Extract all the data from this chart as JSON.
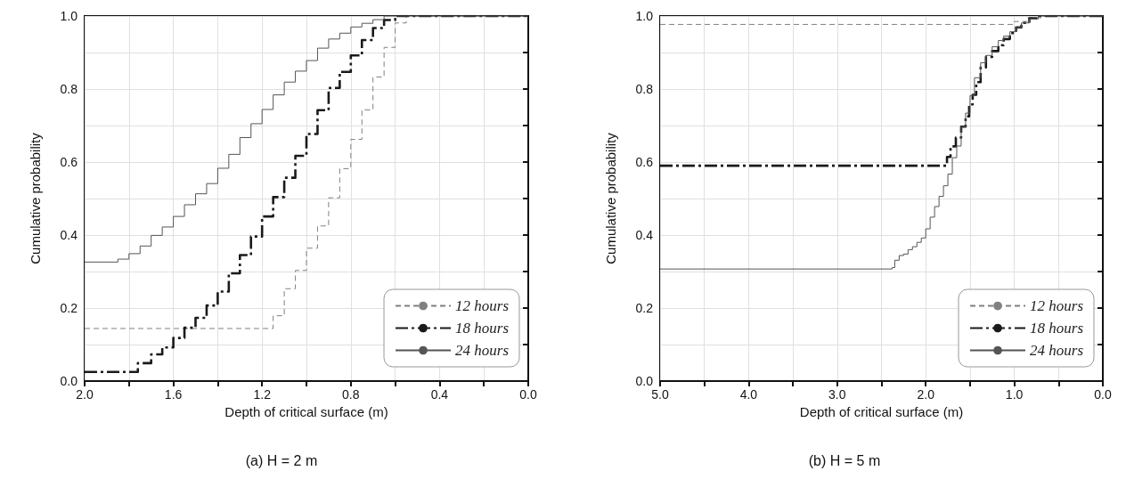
{
  "chart_data": [
    {
      "type": "step",
      "title": "(a) H = 2 m",
      "xlabel": "Depth of critical surface (m)",
      "ylabel": "Cumulative probability",
      "xlim": [
        2.0,
        0.0
      ],
      "xticks": [
        {
          "value": 2.0,
          "label": "2.0"
        },
        {
          "value": 1.8,
          "label": null
        },
        {
          "value": 1.6,
          "label": "1.6"
        },
        {
          "value": 1.4,
          "label": null
        },
        {
          "value": 1.2,
          "label": "1.2"
        },
        {
          "value": 1.0,
          "label": null
        },
        {
          "value": 0.8,
          "label": "0.8"
        },
        {
          "value": 0.6,
          "label": null
        },
        {
          "value": 0.4,
          "label": "0.4"
        },
        {
          "value": 0.2,
          "label": null
        },
        {
          "value": 0.0,
          "label": "0.0"
        }
      ],
      "ylim": [
        0.0,
        1.0
      ],
      "yticks": [
        {
          "value": 0.0,
          "label": "0.0"
        },
        {
          "value": 0.1,
          "label": null
        },
        {
          "value": 0.2,
          "label": "0.2"
        },
        {
          "value": 0.3,
          "label": null
        },
        {
          "value": 0.4,
          "label": "0.4"
        },
        {
          "value": 0.5,
          "label": null
        },
        {
          "value": 0.6,
          "label": "0.6"
        },
        {
          "value": 0.7,
          "label": null
        },
        {
          "value": 0.8,
          "label": "0.8"
        },
        {
          "value": 0.9,
          "label": null
        },
        {
          "value": 1.0,
          "label": "1.0"
        }
      ],
      "grid": true,
      "legend": "bottom right",
      "marker": "none",
      "series": [
        {
          "name": "12 hours",
          "color": "#808080",
          "line_style": "dashed",
          "x": [
            2.0,
            1.15,
            1.1,
            1.05,
            1.0,
            0.95,
            0.9,
            0.85,
            0.8,
            0.75,
            0.7,
            0.65,
            0.6,
            0.55,
            0.0
          ],
          "values": [
            0.144,
            0.179,
            0.253,
            0.303,
            0.364,
            0.425,
            0.502,
            0.582,
            0.662,
            0.743,
            0.833,
            0.914,
            0.981,
            1.0,
            1.0
          ]
        },
        {
          "name": "18 hours",
          "color": "#1a1a1a",
          "line_style": "dashdot",
          "x": [
            2.0,
            1.76,
            1.7,
            1.65,
            1.6,
            1.55,
            1.5,
            1.45,
            1.4,
            1.35,
            1.3,
            1.25,
            1.2,
            1.15,
            1.1,
            1.05,
            1.0,
            0.95,
            0.9,
            0.85,
            0.8,
            0.75,
            0.7,
            0.65,
            0.6,
            0.0
          ],
          "values": [
            0.025,
            0.049,
            0.073,
            0.092,
            0.118,
            0.146,
            0.173,
            0.207,
            0.245,
            0.295,
            0.345,
            0.396,
            0.451,
            0.504,
            0.557,
            0.617,
            0.677,
            0.742,
            0.803,
            0.847,
            0.892,
            0.934,
            0.967,
            0.989,
            1.0,
            1.0
          ]
        },
        {
          "name": "24 hours",
          "color": "#555555",
          "line_style": "solid",
          "x": [
            2.0,
            1.85,
            1.8,
            1.75,
            1.7,
            1.65,
            1.6,
            1.55,
            1.5,
            1.45,
            1.4,
            1.35,
            1.3,
            1.25,
            1.2,
            1.15,
            1.1,
            1.05,
            1.0,
            0.95,
            0.9,
            0.85,
            0.8,
            0.75,
            0.7,
            0.65,
            0.0
          ],
          "values": [
            0.326,
            0.334,
            0.349,
            0.37,
            0.399,
            0.422,
            0.451,
            0.483,
            0.513,
            0.541,
            0.583,
            0.621,
            0.667,
            0.705,
            0.744,
            0.784,
            0.819,
            0.849,
            0.878,
            0.912,
            0.937,
            0.953,
            0.97,
            0.98,
            0.99,
            1.0,
            1.0
          ]
        }
      ]
    },
    {
      "type": "step",
      "title": "(b) H = 5 m",
      "xlabel": "Depth of critical surface (m)",
      "ylabel": "Cumulative probability",
      "xlim": [
        5.0,
        0.0
      ],
      "xticks": [
        {
          "value": 5.0,
          "label": "5.0"
        },
        {
          "value": 4.5,
          "label": null
        },
        {
          "value": 4.0,
          "label": "4.0"
        },
        {
          "value": 3.5,
          "label": null
        },
        {
          "value": 3.0,
          "label": "3.0"
        },
        {
          "value": 2.5,
          "label": null
        },
        {
          "value": 2.0,
          "label": "2.0"
        },
        {
          "value": 1.5,
          "label": null
        },
        {
          "value": 1.0,
          "label": "1.0"
        },
        {
          "value": 0.5,
          "label": null
        },
        {
          "value": 0.0,
          "label": "0.0"
        }
      ],
      "ylim": [
        0.0,
        1.0
      ],
      "yticks": [
        {
          "value": 0.0,
          "label": "0.0"
        },
        {
          "value": 0.1,
          "label": null
        },
        {
          "value": 0.2,
          "label": "0.2"
        },
        {
          "value": 0.3,
          "label": null
        },
        {
          "value": 0.4,
          "label": "0.4"
        },
        {
          "value": 0.5,
          "label": null
        },
        {
          "value": 0.6,
          "label": "0.6"
        },
        {
          "value": 0.7,
          "label": null
        },
        {
          "value": 0.8,
          "label": "0.8"
        },
        {
          "value": 0.9,
          "label": null
        },
        {
          "value": 1.0,
          "label": "1.0"
        }
      ],
      "grid": true,
      "legend": "bottom right",
      "marker": "none",
      "series": [
        {
          "name": "12 hours",
          "color": "#808080",
          "line_style": "dashed",
          "x": [
            5.0,
            1.0,
            0.85,
            0.7,
            0.0
          ],
          "values": [
            0.977,
            0.985,
            0.995,
            1.0,
            1.0
          ]
        },
        {
          "name": "18 hours",
          "color": "#1a1a1a",
          "line_style": "dashdot",
          "x": [
            5.0,
            1.76,
            1.72,
            1.66,
            1.6,
            1.55,
            1.51,
            1.47,
            1.43,
            1.38,
            1.32,
            1.25,
            1.18,
            1.12,
            1.05,
            0.98,
            0.92,
            0.83,
            0.73,
            0.0
          ],
          "values": [
            0.59,
            0.614,
            0.643,
            0.667,
            0.697,
            0.725,
            0.758,
            0.784,
            0.819,
            0.859,
            0.888,
            0.904,
            0.92,
            0.937,
            0.953,
            0.969,
            0.981,
            0.994,
            1.0,
            1.0
          ]
        },
        {
          "name": "24 hours",
          "color": "#555555",
          "line_style": "solid",
          "x": [
            5.0,
            2.38,
            2.35,
            2.3,
            2.25,
            2.2,
            2.15,
            2.1,
            2.05,
            2.0,
            1.95,
            1.9,
            1.85,
            1.8,
            1.75,
            1.7,
            1.65,
            1.6,
            1.55,
            1.5,
            1.45,
            1.38,
            1.32,
            1.25,
            1.18,
            1.12,
            1.05,
            0.98,
            0.92,
            0.83,
            0.73,
            0.0
          ],
          "values": [
            0.307,
            0.311,
            0.331,
            0.344,
            0.348,
            0.36,
            0.368,
            0.38,
            0.392,
            0.417,
            0.449,
            0.478,
            0.506,
            0.535,
            0.567,
            0.612,
            0.644,
            0.697,
            0.734,
            0.782,
            0.831,
            0.872,
            0.892,
            0.916,
            0.933,
            0.945,
            0.957,
            0.969,
            0.981,
            0.992,
            1.0,
            1.0
          ]
        }
      ]
    }
  ]
}
